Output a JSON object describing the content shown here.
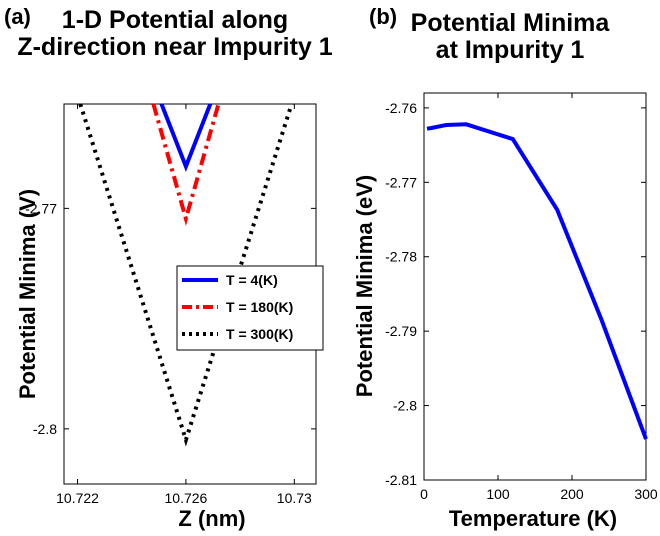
{
  "panels": [
    {
      "letter": "(a)",
      "title_lines": [
        "1-D Potential along",
        "Z-direction near Impurity 1"
      ]
    },
    {
      "letter": "(b)",
      "title_lines": [
        "Potential Minima",
        "at Impurity 1"
      ]
    }
  ],
  "chart_data": [
    {
      "type": "line",
      "xlabel": "Z (nm)",
      "ylabel": "Potential Minima (V)",
      "xlim": [
        10.7215,
        10.7308
      ],
      "ylim": [
        -2.8075,
        -2.7558
      ],
      "xticks": [
        10.722,
        10.726,
        10.73
      ],
      "xtick_labels": [
        "10.722",
        "10.726",
        "10.73"
      ],
      "yticks": [
        -2.8,
        -2.77
      ],
      "ytick_labels": [
        "-2.8",
        "-2.77"
      ],
      "grid": false,
      "legend_position": "center-right",
      "series": [
        {
          "name": "T = 4(K)",
          "color": "#0000ff",
          "dash": "solid",
          "x": [
            10.7251,
            10.726,
            10.7269
          ],
          "y": [
            -2.7558,
            -2.7643,
            -2.7558
          ]
        },
        {
          "name": "T = 180(K)",
          "color": "#ff0000",
          "dash": "dashdot",
          "x": [
            10.7248,
            10.726,
            10.7272
          ],
          "y": [
            -2.7558,
            -2.7714,
            -2.7558
          ]
        },
        {
          "name": "T = 300(K)",
          "color": "#000000",
          "dash": "dotted",
          "x": [
            10.7221,
            10.726,
            10.7299
          ],
          "y": [
            -2.7558,
            -2.8015,
            -2.7558
          ]
        }
      ]
    },
    {
      "type": "line",
      "xlabel": "Temperature (K)",
      "ylabel": "Potential Minima (eV)",
      "xlim": [
        0,
        300
      ],
      "ylim": [
        -2.81,
        -2.758
      ],
      "xticks": [
        0,
        100,
        200,
        300
      ],
      "xtick_labels": [
        "0",
        "100",
        "200",
        "300"
      ],
      "yticks": [
        -2.81,
        -2.8,
        -2.79,
        -2.78,
        -2.77,
        -2.76
      ],
      "ytick_labels": [
        "-2.81",
        "-2.8",
        "-2.79",
        "-2.78",
        "-2.77",
        "-2.76"
      ],
      "grid": false,
      "series": [
        {
          "color": "#0000ff",
          "dash": "solid",
          "x": [
            4,
            10,
            30,
            57,
            120,
            180,
            240,
            300
          ],
          "y": [
            -2.7628,
            -2.7627,
            -2.7623,
            -2.7622,
            -2.7642,
            -2.7737,
            -2.7885,
            -2.8045
          ]
        }
      ]
    }
  ]
}
